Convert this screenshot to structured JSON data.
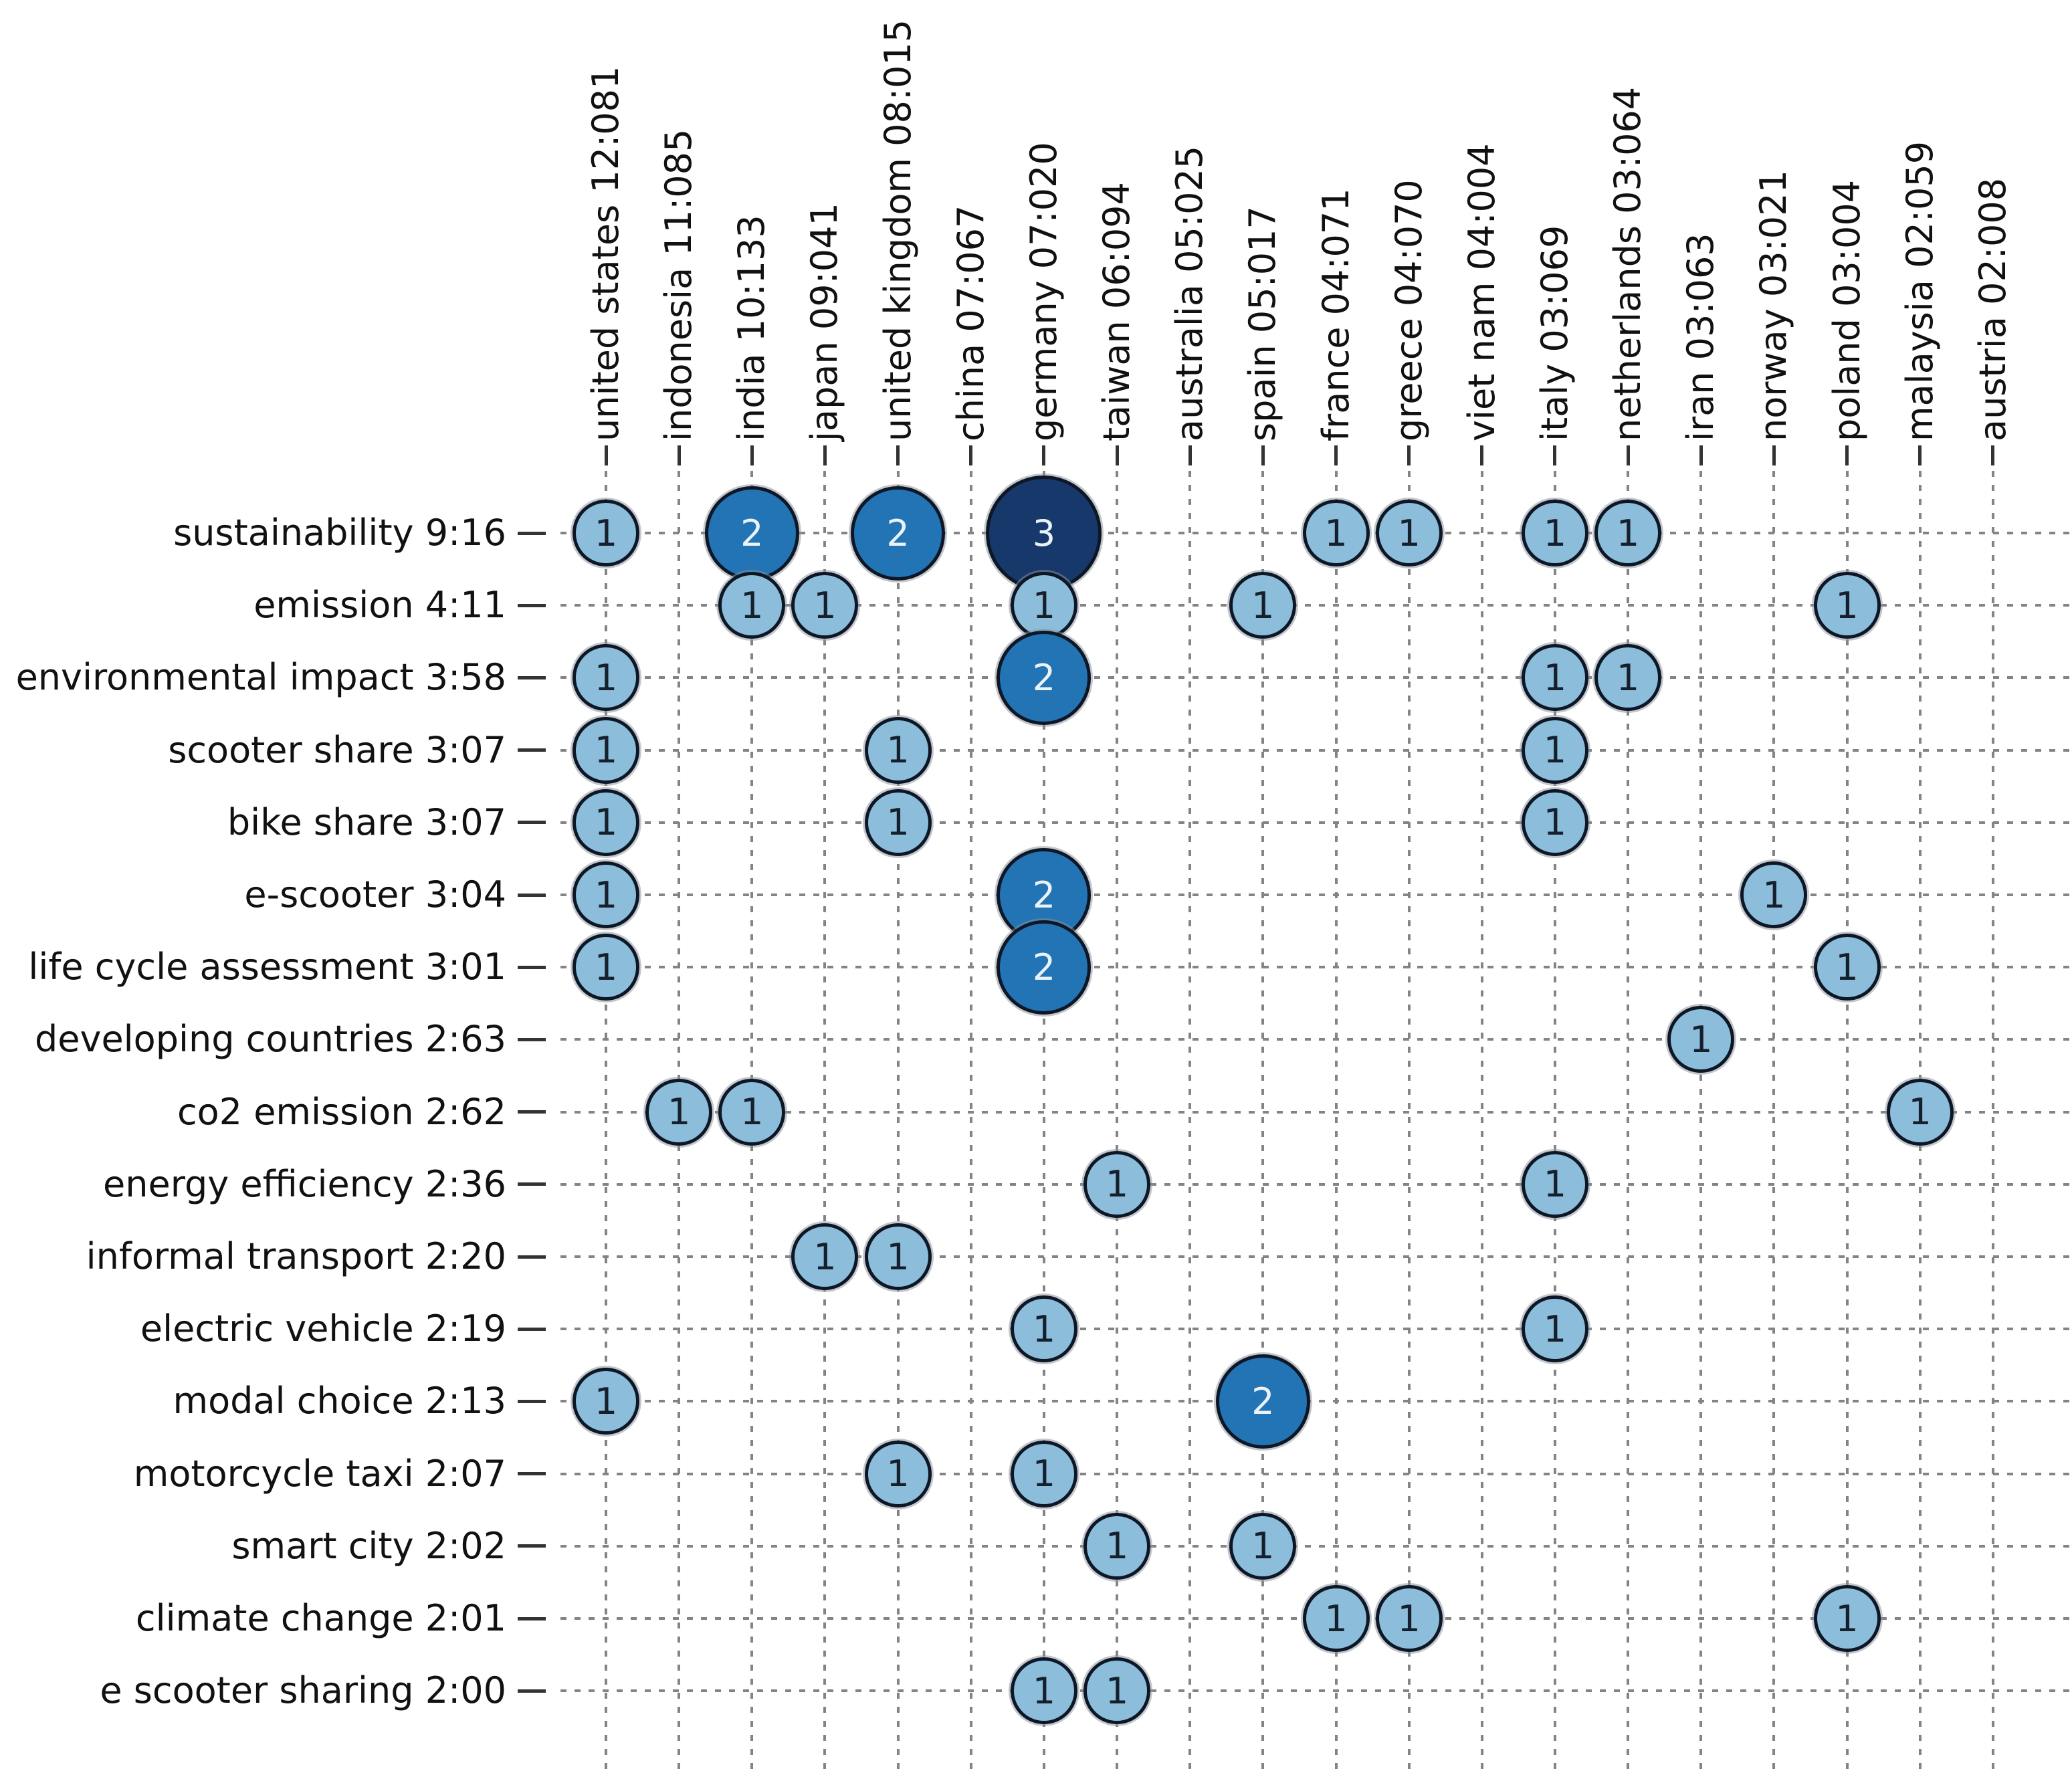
{
  "figure": {
    "background": "#ffffff",
    "grid_color": "#848484",
    "tick_color": "#333333",
    "label_color": "#111111"
  },
  "chart_data": {
    "type": "scatter",
    "subtype": "bubble-matrix",
    "title": "",
    "xlabel": "",
    "ylabel": "",
    "grid": "dotted",
    "legend_position": "none",
    "x_categories": [
      "united states 12:081",
      "indonesia 11:085",
      "india 10:133",
      "japan 09:041",
      "united kingdom 08:015",
      "china 07:067",
      "germany 07:020",
      "taiwan 06:094",
      "australia 05:025",
      "spain 05:017",
      "france 04:071",
      "greece 04:070",
      "viet nam 04:004",
      "italy 03:069",
      "netherlands 03:064",
      "iran 03:063",
      "norway 03:021",
      "poland 03:004",
      "malaysia 02:059",
      "austria 02:008"
    ],
    "y_categories": [
      "sustainability 9:16",
      "emission 4:11",
      "environmental impact 3:58",
      "scooter share 3:07",
      "bike share 3:07",
      "e-scooter 3:04",
      "life cycle assessment 3:01",
      "developing countries 2:63",
      "co2 emission 2:62",
      "energy efficiency 2:36",
      "informal transport 2:20",
      "electric vehicle 2:19",
      "modal choice 2:13",
      "motorcycle taxi 2:07",
      "smart city 2:02",
      "climate change 2:01",
      "e scooter sharing 2:00"
    ],
    "points": [
      {
        "xi": 0,
        "yi": 0,
        "value": 1
      },
      {
        "xi": 2,
        "yi": 0,
        "value": 2
      },
      {
        "xi": 4,
        "yi": 0,
        "value": 2
      },
      {
        "xi": 6,
        "yi": 0,
        "value": 3
      },
      {
        "xi": 10,
        "yi": 0,
        "value": 1
      },
      {
        "xi": 11,
        "yi": 0,
        "value": 1
      },
      {
        "xi": 13,
        "yi": 0,
        "value": 1
      },
      {
        "xi": 14,
        "yi": 0,
        "value": 1
      },
      {
        "xi": 2,
        "yi": 1,
        "value": 1
      },
      {
        "xi": 3,
        "yi": 1,
        "value": 1
      },
      {
        "xi": 6,
        "yi": 1,
        "value": 1
      },
      {
        "xi": 9,
        "yi": 1,
        "value": 1
      },
      {
        "xi": 17,
        "yi": 1,
        "value": 1
      },
      {
        "xi": 0,
        "yi": 2,
        "value": 1
      },
      {
        "xi": 6,
        "yi": 2,
        "value": 2
      },
      {
        "xi": 13,
        "yi": 2,
        "value": 1
      },
      {
        "xi": 14,
        "yi": 2,
        "value": 1
      },
      {
        "xi": 0,
        "yi": 3,
        "value": 1
      },
      {
        "xi": 4,
        "yi": 3,
        "value": 1
      },
      {
        "xi": 13,
        "yi": 3,
        "value": 1
      },
      {
        "xi": 0,
        "yi": 4,
        "value": 1
      },
      {
        "xi": 4,
        "yi": 4,
        "value": 1
      },
      {
        "xi": 13,
        "yi": 4,
        "value": 1
      },
      {
        "xi": 0,
        "yi": 5,
        "value": 1
      },
      {
        "xi": 6,
        "yi": 5,
        "value": 2
      },
      {
        "xi": 16,
        "yi": 5,
        "value": 1
      },
      {
        "xi": 0,
        "yi": 6,
        "value": 1
      },
      {
        "xi": 6,
        "yi": 6,
        "value": 2
      },
      {
        "xi": 17,
        "yi": 6,
        "value": 1
      },
      {
        "xi": 15,
        "yi": 7,
        "value": 1
      },
      {
        "xi": 1,
        "yi": 8,
        "value": 1
      },
      {
        "xi": 2,
        "yi": 8,
        "value": 1
      },
      {
        "xi": 18,
        "yi": 8,
        "value": 1
      },
      {
        "xi": 7,
        "yi": 9,
        "value": 1
      },
      {
        "xi": 13,
        "yi": 9,
        "value": 1
      },
      {
        "xi": 3,
        "yi": 10,
        "value": 1
      },
      {
        "xi": 4,
        "yi": 10,
        "value": 1
      },
      {
        "xi": 6,
        "yi": 11,
        "value": 1
      },
      {
        "xi": 13,
        "yi": 11,
        "value": 1
      },
      {
        "xi": 0,
        "yi": 12,
        "value": 1
      },
      {
        "xi": 9,
        "yi": 12,
        "value": 2
      },
      {
        "xi": 4,
        "yi": 13,
        "value": 1
      },
      {
        "xi": 6,
        "yi": 13,
        "value": 1
      },
      {
        "xi": 7,
        "yi": 14,
        "value": 1
      },
      {
        "xi": 9,
        "yi": 14,
        "value": 1
      },
      {
        "xi": 10,
        "yi": 15,
        "value": 1
      },
      {
        "xi": 11,
        "yi": 15,
        "value": 1
      },
      {
        "xi": 17,
        "yi": 15,
        "value": 1
      },
      {
        "xi": 6,
        "yi": 16,
        "value": 1
      },
      {
        "xi": 7,
        "yi": 16,
        "value": 1
      }
    ],
    "value_colors": {
      "1": "#8cbedc",
      "2": "#2274b5",
      "3": "#17386b"
    },
    "value_text_colors": {
      "1": "#16202c",
      "2": "#eaf2fa",
      "3": "#eaf2fa"
    }
  }
}
